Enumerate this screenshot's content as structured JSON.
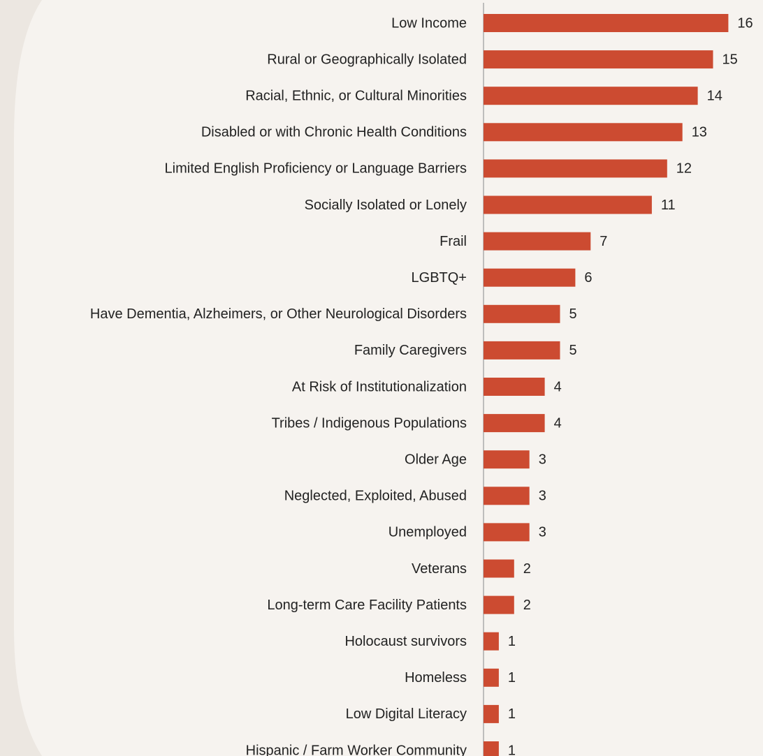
{
  "chart_data": {
    "type": "bar",
    "orientation": "horizontal",
    "color": "#cc4b31",
    "categories": [
      "Low Income",
      "Rural or Geographically Isolated",
      "Racial, Ethnic, or Cultural Minorities",
      "Disabled or with Chronic Health Conditions",
      "Limited English Proficiency or Language Barriers",
      "Socially Isolated or Lonely",
      "Frail",
      "LGBTQ+",
      "Have Dementia, Alzheimers, or Other Neurological Disorders",
      "Family Caregivers",
      "At Risk of Institutionalization",
      "Tribes / Indigenous Populations",
      "Older Age",
      "Neglected, Exploited, Abused",
      "Unemployed",
      "Veterans",
      "Long-term Care Facility Patients",
      "Holocaust survivors",
      "Homeless",
      "Low Digital Literacy",
      "Hispanic / Farm Worker Community"
    ],
    "values": [
      16,
      15,
      14,
      13,
      12,
      11,
      7,
      6,
      5,
      5,
      4,
      4,
      3,
      3,
      3,
      2,
      2,
      1,
      1,
      1,
      1
    ]
  }
}
